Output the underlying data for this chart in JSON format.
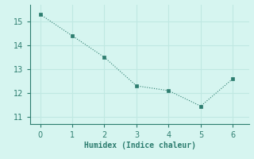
{
  "x": [
    0,
    1,
    2,
    3,
    4,
    5,
    6
  ],
  "y": [
    15.3,
    14.4,
    13.5,
    12.3,
    12.1,
    11.45,
    12.6
  ],
  "line_color": "#2d7d6f",
  "marker_color": "#2d7d6f",
  "bg_color": "#d6f5f0",
  "grid_color": "#c0e8e2",
  "axis_color": "#2d7d6f",
  "tick_color": "#2d7d6f",
  "xlabel": "Humidex (Indice chaleur)",
  "xlim": [
    -0.3,
    6.5
  ],
  "ylim": [
    10.7,
    15.7
  ],
  "yticks": [
    11,
    12,
    13,
    14,
    15
  ],
  "xticks": [
    0,
    1,
    2,
    3,
    4,
    5,
    6
  ],
  "font_size": 7,
  "xlabel_fontsize": 7
}
